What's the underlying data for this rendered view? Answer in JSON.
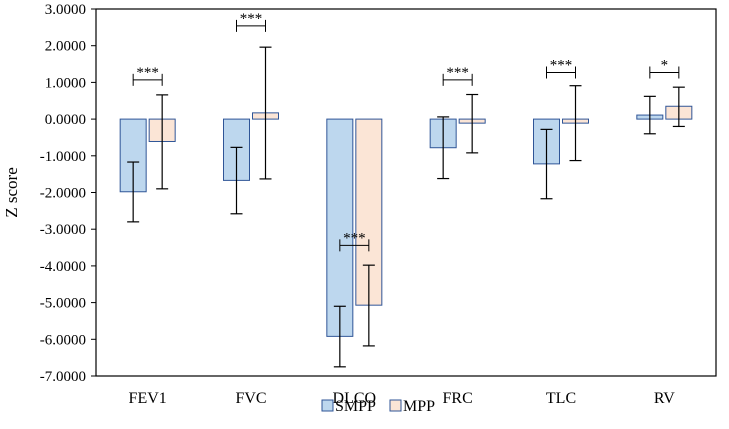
{
  "chart_data": {
    "type": "bar",
    "title": "",
    "xlabel": "",
    "ylabel": "Z score",
    "ylim": [
      -7,
      3
    ],
    "yticks": [
      3,
      2,
      1,
      0,
      -1,
      -2,
      -3,
      -4,
      -5,
      -6,
      -7
    ],
    "ytick_labels": [
      "3.0000",
      "2.0000",
      "1.0000",
      "0.0000",
      "-1.0000",
      "-2.0000",
      "-3.0000",
      "-4.0000",
      "-5.0000",
      "-6.0000",
      "-7.0000"
    ],
    "categories": [
      "FEV1",
      "FVC",
      "DLCO",
      "FRC",
      "TLC",
      "RV"
    ],
    "series": [
      {
        "name": "SMPP",
        "color": "#bdd7ee",
        "values": [
          -1.98,
          -1.67,
          -5.92,
          -0.78,
          -1.22,
          0.11
        ],
        "error_low": [
          -2.8,
          -2.58,
          -6.75,
          -1.62,
          -2.17,
          -0.4
        ],
        "error_high": [
          -1.17,
          -0.77,
          -5.1,
          0.06,
          -0.28,
          0.62
        ]
      },
      {
        "name": "MPP",
        "color": "#fbe5d6",
        "values": [
          -0.61,
          0.17,
          -5.07,
          -0.11,
          -0.11,
          0.35
        ],
        "error_low": [
          -1.9,
          -1.63,
          -6.18,
          -0.92,
          -1.13,
          -0.2
        ],
        "error_high": [
          0.66,
          1.96,
          -3.98,
          0.67,
          0.91,
          0.87
        ]
      }
    ],
    "significance": [
      {
        "category": "FEV1",
        "label": "***",
        "level": 1.07
      },
      {
        "category": "FVC",
        "label": "***",
        "level": 2.54
      },
      {
        "category": "DLCO",
        "label": "***",
        "level": -3.44
      },
      {
        "category": "FRC",
        "label": "***",
        "level": 1.07
      },
      {
        "category": "TLC",
        "label": "***",
        "level": 1.27
      },
      {
        "category": "RV",
        "label": "*",
        "level": 1.27
      }
    ],
    "legend_position": "bottom",
    "grid": false
  }
}
